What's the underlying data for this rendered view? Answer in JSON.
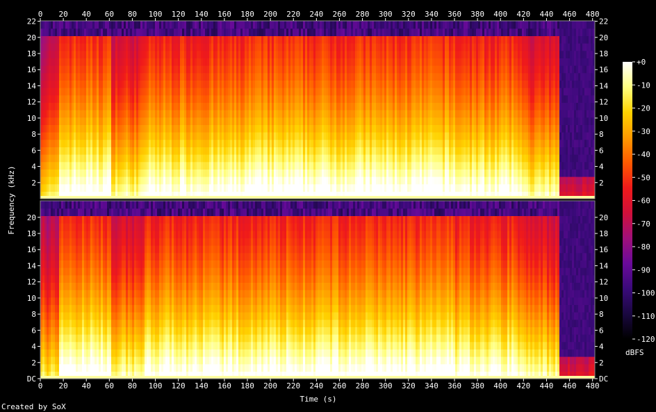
{
  "chart_data": {
    "type": "heatmap",
    "title": "",
    "xlabel": "Time (s)",
    "ylabel": "Frequency (kHz)",
    "xlim": [
      0,
      482
    ],
    "ylim": [
      0,
      22.05
    ],
    "x_ticks": [
      "0",
      "20",
      "40",
      "60",
      "80",
      "100",
      "120",
      "140",
      "160",
      "180",
      "200",
      "220",
      "240",
      "260",
      "280",
      "300",
      "320",
      "340",
      "360",
      "380",
      "400",
      "420",
      "440",
      "460",
      "480"
    ],
    "y_ticks_top": [
      "2",
      "4",
      "6",
      "8",
      "10",
      "12",
      "14",
      "16",
      "18",
      "20",
      "22"
    ],
    "y_ticks_bottom": [
      "DC",
      "2",
      "4",
      "6",
      "8",
      "10",
      "12",
      "14",
      "16",
      "18",
      "20"
    ],
    "colorbar": {
      "label": "dBFS",
      "ticks": [
        "+0",
        "-10",
        "-20",
        "-30",
        "-40",
        "-50",
        "-60",
        "-70",
        "-80",
        "-90",
        "-100",
        "-110",
        "-120"
      ],
      "range": [
        -120,
        0
      ]
    },
    "channels": [
      {
        "panel": "top",
        "segments": [
          {
            "t0": 0,
            "t1": 15,
            "level": 0.55
          },
          {
            "t0": 15,
            "t1": 60,
            "level": 0.72
          },
          {
            "t0": 60,
            "t1": 90,
            "level": 0.62
          },
          {
            "t0": 90,
            "t1": 175,
            "level": 0.7
          },
          {
            "t0": 175,
            "t1": 360,
            "level": 0.72
          },
          {
            "t0": 360,
            "t1": 420,
            "level": 0.7
          },
          {
            "t0": 420,
            "t1": 450,
            "level": 0.62
          },
          {
            "t0": 450,
            "t1": 482,
            "level": 0.18
          }
        ]
      },
      {
        "panel": "bottom",
        "segments": [
          {
            "t0": 0,
            "t1": 15,
            "level": 0.55
          },
          {
            "t0": 15,
            "t1": 60,
            "level": 0.72
          },
          {
            "t0": 60,
            "t1": 90,
            "level": 0.62
          },
          {
            "t0": 90,
            "t1": 175,
            "level": 0.7
          },
          {
            "t0": 175,
            "t1": 360,
            "level": 0.71
          },
          {
            "t0": 360,
            "t1": 420,
            "level": 0.69
          },
          {
            "t0": 420,
            "t1": 450,
            "level": 0.62
          },
          {
            "t0": 450,
            "t1": 482,
            "level": 0.18
          }
        ]
      }
    ],
    "palette": [
      "#000000",
      "#1a0840",
      "#3a0a7a",
      "#6a0a9a",
      "#a0107a",
      "#d0103a",
      "#f01a1a",
      "#ff5a00",
      "#ff9a00",
      "#ffd200",
      "#ffff80",
      "#ffffff"
    ]
  },
  "footer": {
    "credit": "Created by SoX"
  }
}
